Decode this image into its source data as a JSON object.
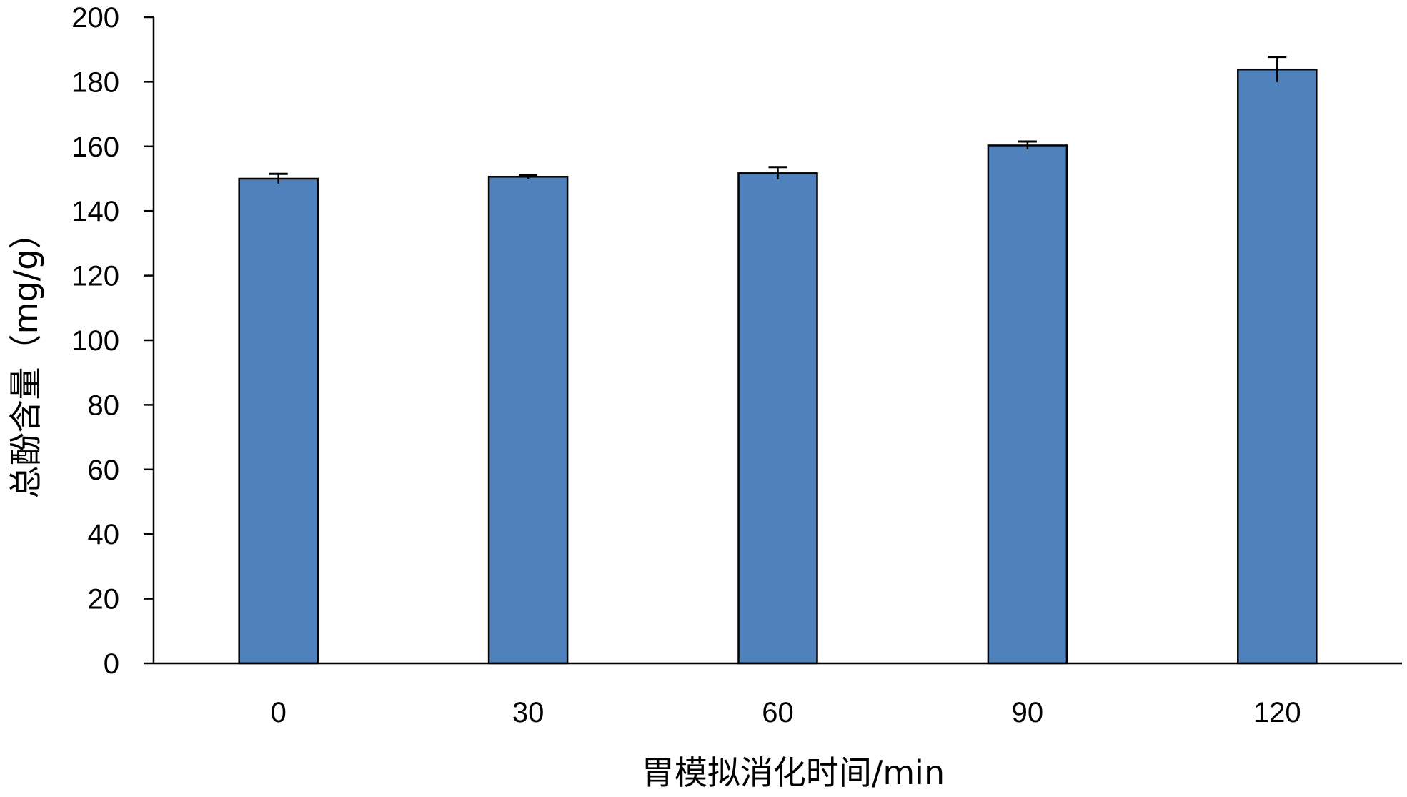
{
  "chart_data": {
    "type": "bar",
    "title": "",
    "xlabel": "胃模拟消化时间/min",
    "ylabel": "总酚含量（mg/g）",
    "categories": [
      "0",
      "30",
      "60",
      "90",
      "120"
    ],
    "values": [
      150.0,
      150.6,
      151.7,
      160.3,
      183.8
    ],
    "error": [
      1.5,
      0.6,
      1.9,
      1.2,
      3.9
    ],
    "ylim": [
      0,
      200
    ],
    "yticks": [
      "0",
      "20",
      "40",
      "60",
      "80",
      "100",
      "120",
      "140",
      "160",
      "180",
      "200"
    ],
    "grid": false,
    "legend": "none",
    "colors": {
      "bar_fill": "#4f81bd",
      "bar_stroke": "#000000",
      "axis": "#000000"
    }
  }
}
